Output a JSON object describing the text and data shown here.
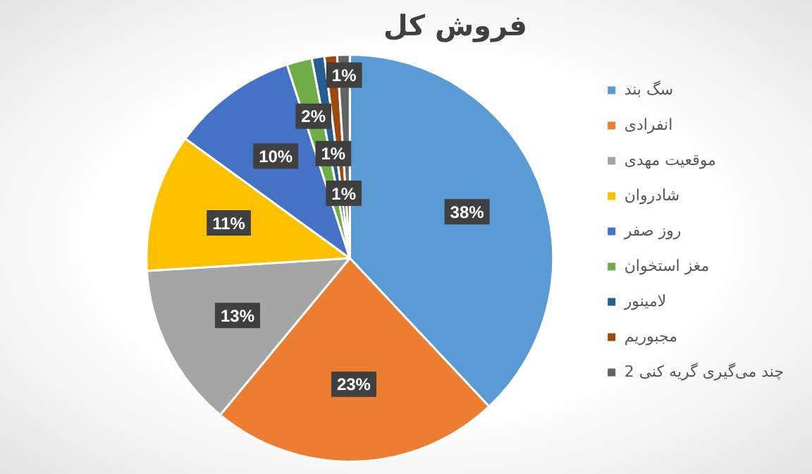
{
  "chart_data": {
    "type": "pie",
    "title": "فروش کل",
    "categories": [
      "سگ بند",
      "انفرادی",
      "موقعیت مهدی",
      "شادروان",
      "روز صفر",
      "مغز استخوان",
      "لامینور",
      "مجبوریم",
      "چند می‌گیری گریه کنی 2"
    ],
    "values": [
      38,
      23,
      13,
      11,
      10,
      2,
      1,
      1,
      1
    ],
    "colors": [
      "#5b9bd5",
      "#ed7d31",
      "#a5a5a5",
      "#ffc000",
      "#4472c4",
      "#70ad47",
      "#255e91",
      "#9e480e",
      "#636363"
    ],
    "value_labels": [
      "38%",
      "23%",
      "13%",
      "11%",
      "10%",
      "2%",
      "1%",
      "1%",
      "1%"
    ],
    "legend": "right"
  }
}
